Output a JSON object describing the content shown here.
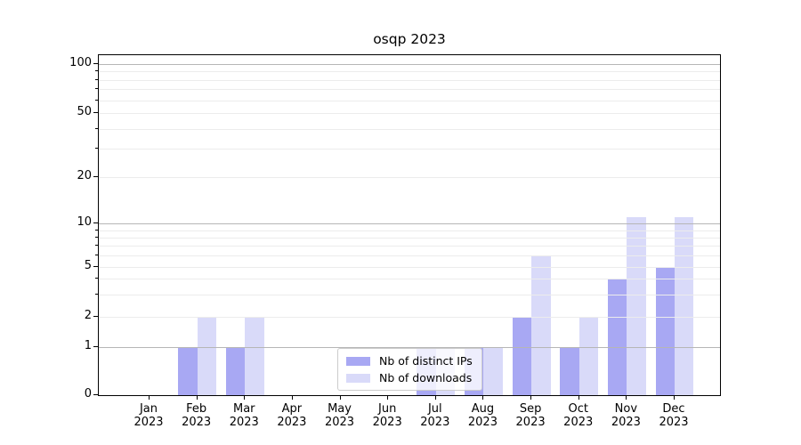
{
  "chart_data": {
    "type": "bar",
    "title": "osqp 2023",
    "x_year": "2023",
    "categories": [
      "Jan",
      "Feb",
      "Mar",
      "Apr",
      "May",
      "Jun",
      "Jul",
      "Aug",
      "Sep",
      "Oct",
      "Nov",
      "Dec"
    ],
    "series": [
      {
        "name": "Nb of distinct IPs",
        "color": "#a8a8f3",
        "values": [
          0,
          1,
          1,
          0,
          0,
          0,
          1,
          1,
          2,
          1,
          4,
          5
        ]
      },
      {
        "name": "Nb of downloads",
        "color": "#d9daf9",
        "values": [
          0,
          2,
          2,
          0,
          0,
          0,
          1,
          1,
          6,
          2,
          11,
          11
        ]
      }
    ],
    "yaxis": {
      "scale": "symlog",
      "ticks": [
        0,
        1,
        2,
        5,
        10,
        20,
        50,
        100
      ],
      "minor_gridlines": [
        3,
        4,
        6,
        7,
        8,
        9,
        30,
        40,
        60,
        70,
        80,
        90
      ],
      "decade_gridlines": [
        1,
        10,
        100
      ],
      "ylim": [
        0,
        113
      ]
    },
    "legend": {
      "position": "inside-bottom-center",
      "entries": [
        "Nb of distinct IPs",
        "Nb of downloads"
      ]
    },
    "grid": true,
    "colors": {
      "bar_dark": "#a8a8f3",
      "bar_light": "#d9daf9",
      "grid_major": "#b6b6b6",
      "grid_minor": "#ececec",
      "spine": "#000000",
      "background": "#ffffff"
    }
  }
}
